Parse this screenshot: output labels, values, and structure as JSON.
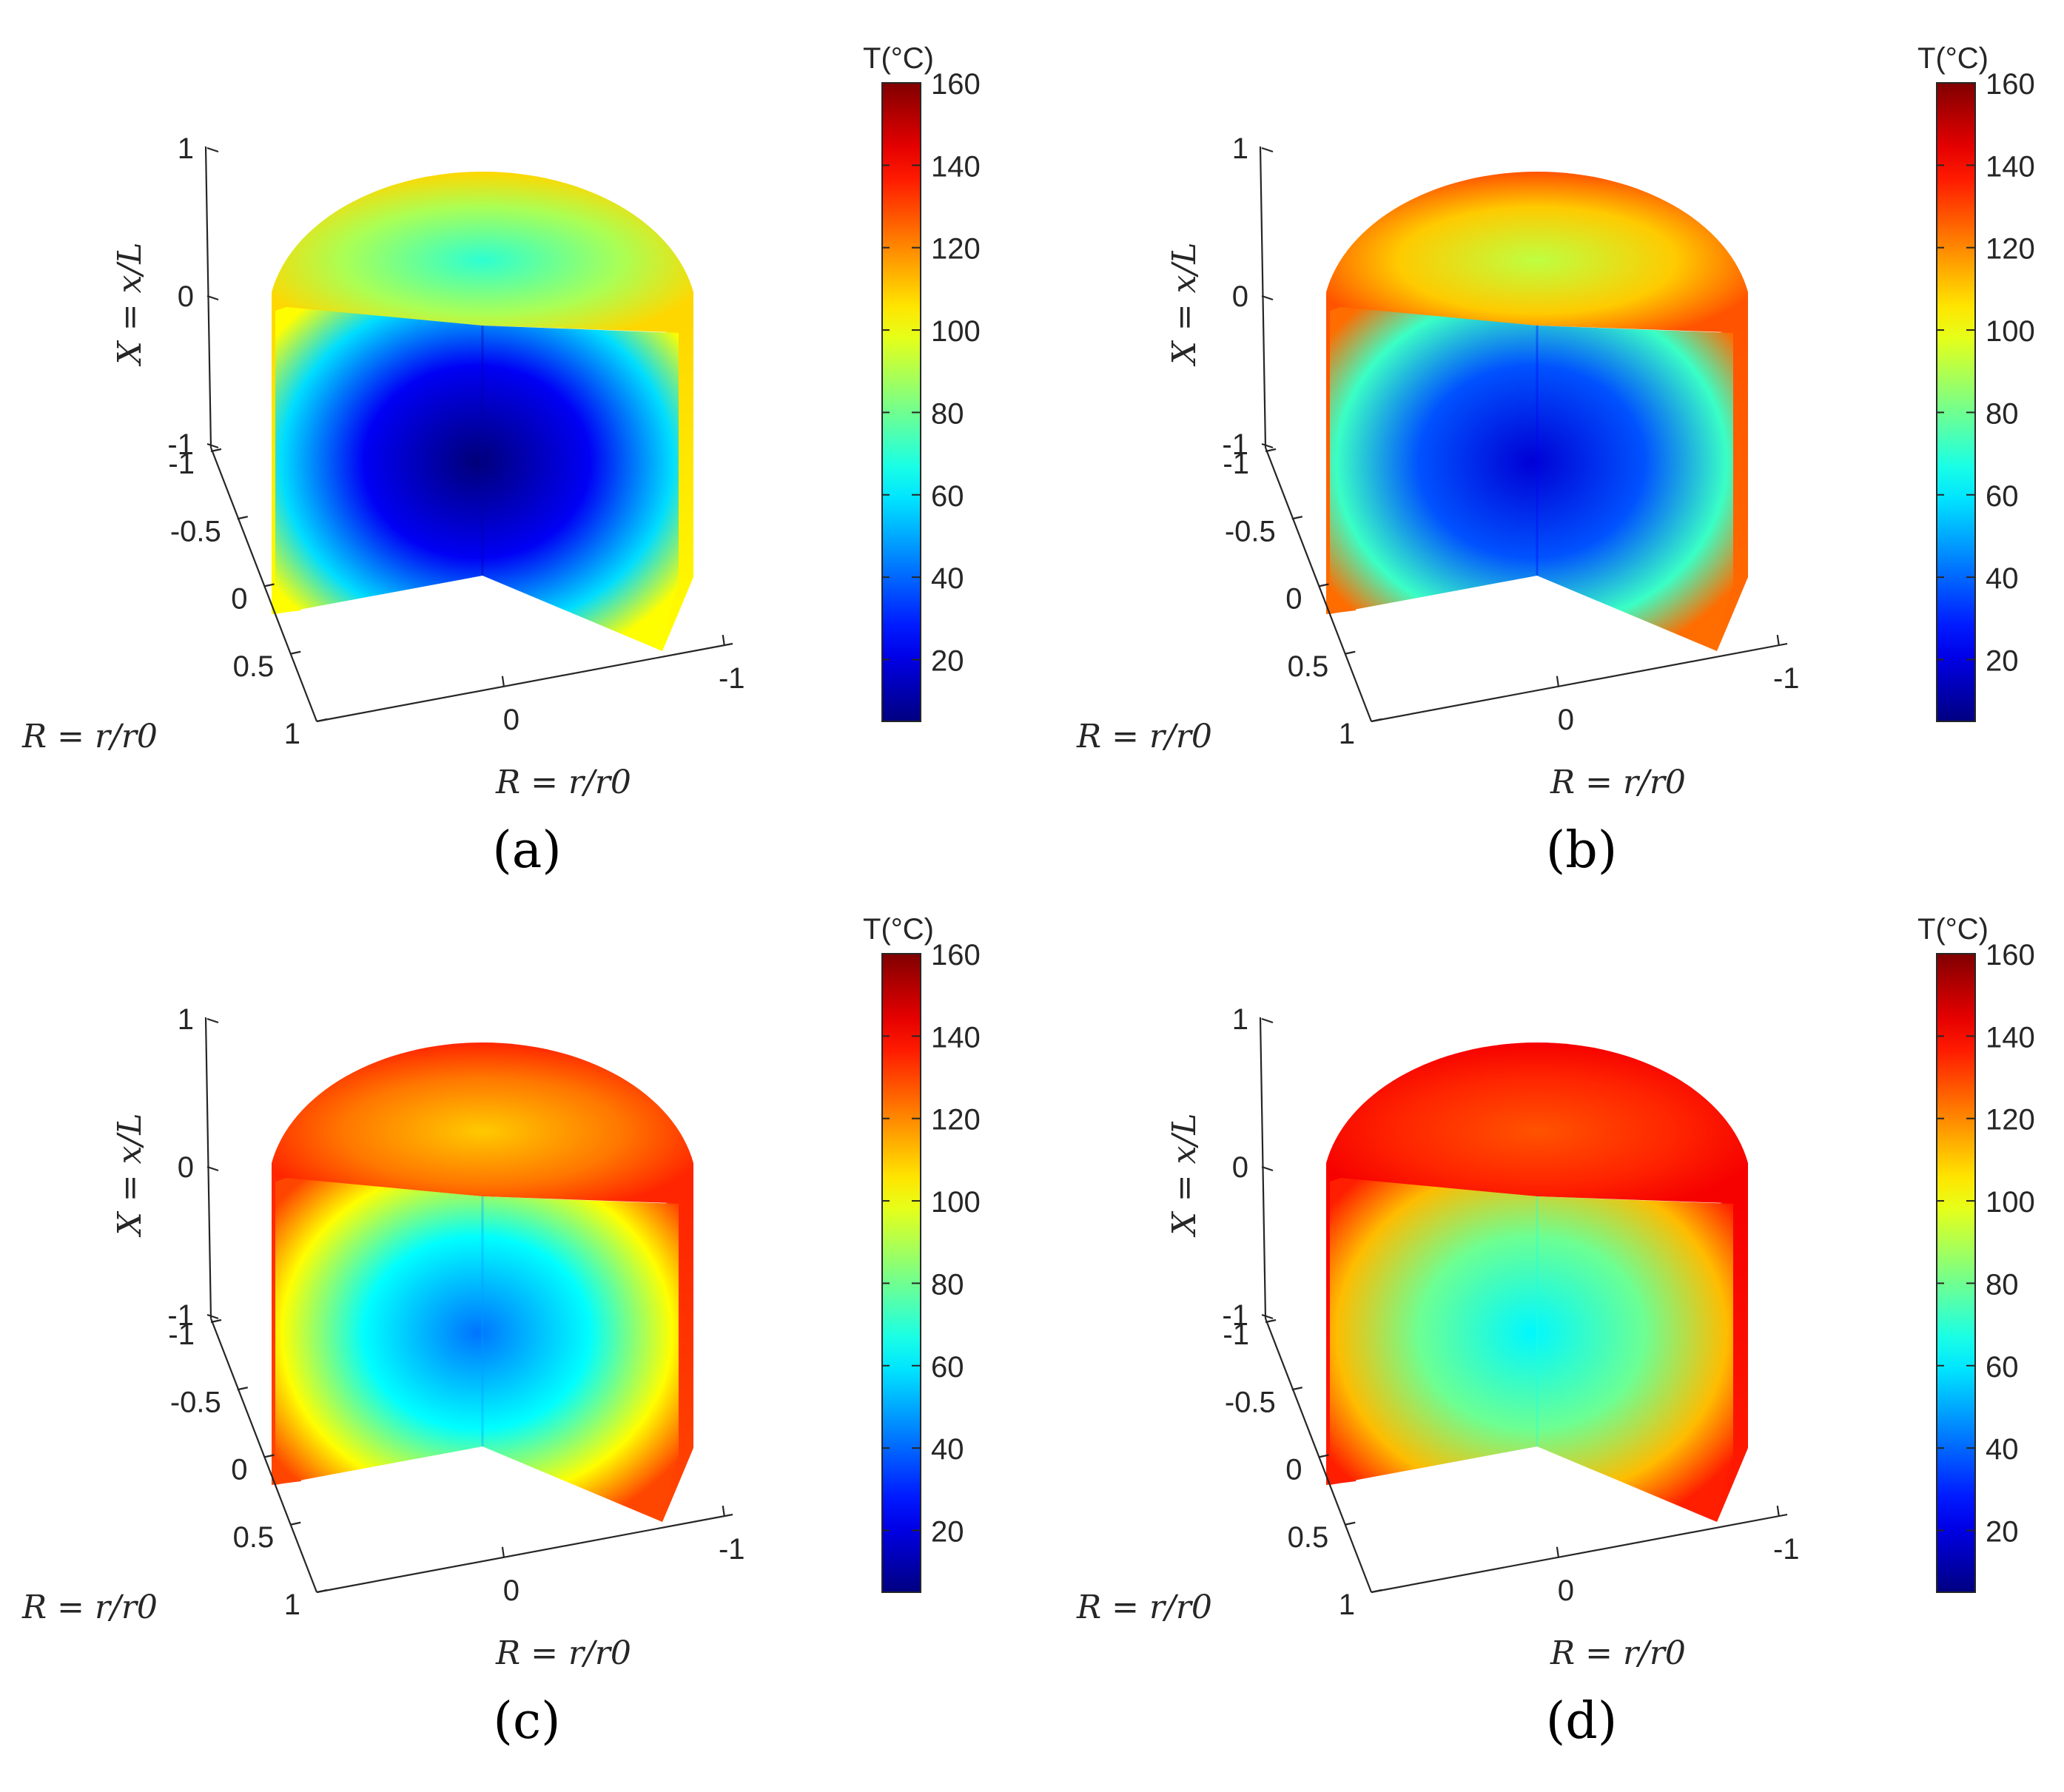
{
  "figure": {
    "panels": [
      {
        "label": "(a)",
        "field": {
          "top_edge": 108,
          "top_center": 70,
          "front_edge": 102,
          "front_inner": 58,
          "core": 4,
          "edge_width": 0.22
        }
      },
      {
        "label": "(b)",
        "field": {
          "top_edge": 128,
          "top_center": 92,
          "front_edge": 124,
          "front_inner": 72,
          "core": 18,
          "edge_width": 0.3
        }
      },
      {
        "label": "(c)",
        "field": {
          "top_edge": 135,
          "top_center": 110,
          "front_edge": 130,
          "front_inner": 102,
          "core": 42,
          "edge_width": 0.3
        }
      },
      {
        "label": "(d)",
        "field": {
          "top_edge": 142,
          "top_center": 128,
          "front_edge": 136,
          "front_inner": 112,
          "core": 62,
          "edge_width": 0.3
        }
      }
    ]
  },
  "chart_data": {
    "type": "heatmap",
    "colormap": "jet",
    "colorbar": {
      "title": "T(°C)",
      "range": [
        5,
        160
      ],
      "ticks": [
        20,
        40,
        60,
        80,
        100,
        120,
        140,
        160
      ]
    },
    "axes": {
      "x_axis": {
        "label": "X = x/L",
        "ticks": [
          "1",
          "0",
          "-1"
        ]
      },
      "r_axis_left": {
        "label": "R = r/r0",
        "ticks": [
          "-1",
          "-0.5",
          "0",
          "0.5",
          "1"
        ]
      },
      "r_axis_right": {
        "label": "R = r/r0",
        "ticks": [
          "0",
          "-1"
        ]
      }
    }
  }
}
